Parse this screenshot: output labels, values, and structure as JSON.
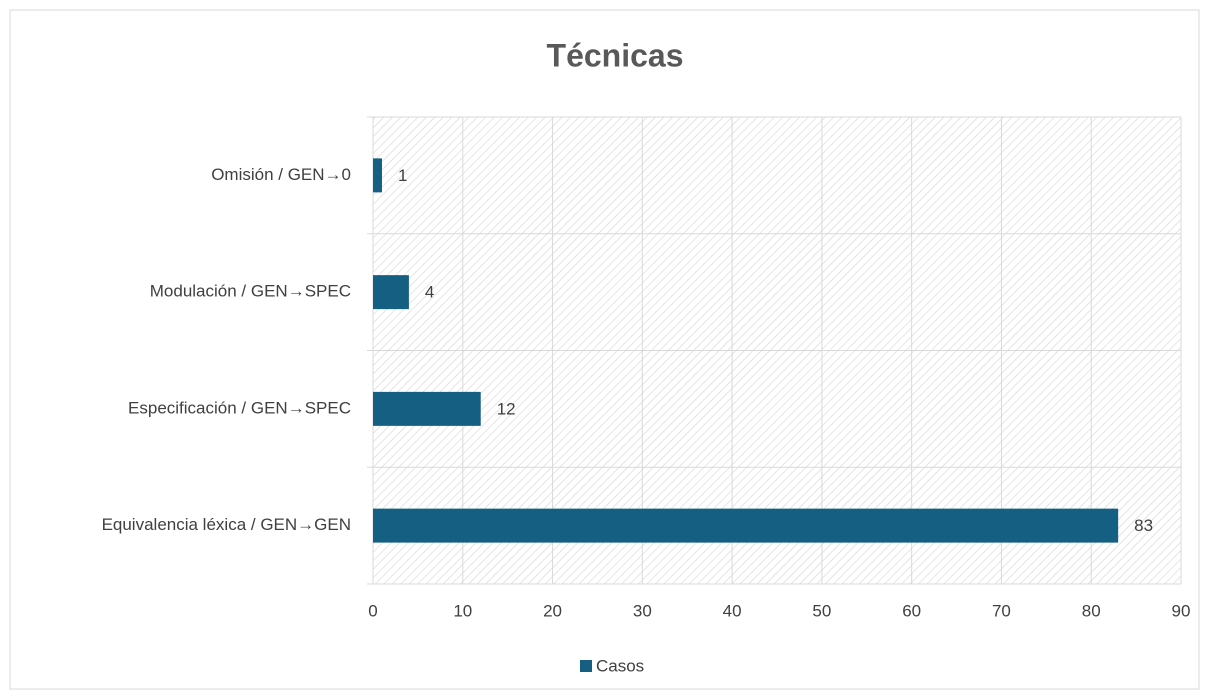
{
  "chart_data": {
    "type": "bar",
    "orientation": "horizontal",
    "title": "Técnicas",
    "categories": [
      "Omisión / GEN→0",
      "Modulación / GEN→SPEC",
      "Especificación / GEN→SPEC",
      "Equivalencia léxica / GEN→GEN"
    ],
    "series": [
      {
        "name": "Casos",
        "color": "#156082",
        "values": [
          1,
          4,
          12,
          83
        ]
      }
    ],
    "xlim": [
      0,
      90
    ],
    "xticks": [
      0,
      10,
      20,
      30,
      40,
      50,
      60,
      70,
      80,
      90
    ],
    "grid": true,
    "legend": "bottom"
  }
}
